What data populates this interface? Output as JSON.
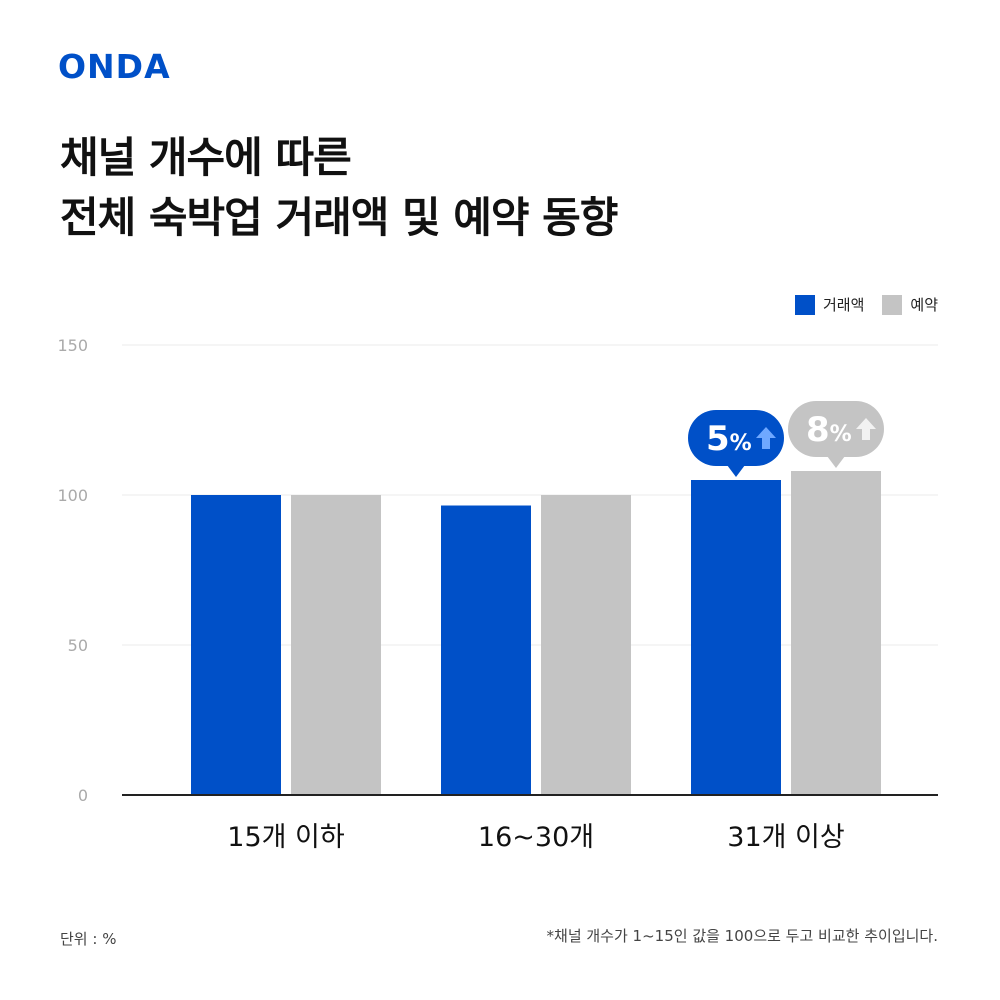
{
  "brand": {
    "logo_text": "ONDA",
    "logo_color": "#0050C8"
  },
  "title": {
    "line1": "채널 개수에 따른",
    "line2": "전체 숙박업 거래액 및 예약 동향"
  },
  "legend": [
    {
      "label": "거래액",
      "color": "#0050C8"
    },
    {
      "label": "예약",
      "color": "#C4C4C4"
    }
  ],
  "chart_data": {
    "type": "bar",
    "categories": [
      "15개 이하",
      "16~30개",
      "31개 이상"
    ],
    "series": [
      {
        "name": "거래액",
        "color": "#0050C8",
        "values": [
          100,
          96.5,
          105
        ]
      },
      {
        "name": "예약",
        "color": "#C4C4C4",
        "values": [
          100,
          100,
          108
        ]
      }
    ],
    "ylim": [
      0,
      150
    ],
    "yticks": [
      0,
      50,
      100,
      150
    ],
    "grid": true,
    "legend_position": "top-right",
    "annotations": [
      {
        "category": "31개 이상",
        "series": "거래액",
        "number": "5",
        "unit": "%",
        "direction": "up",
        "bubble_color": "#0050C8"
      },
      {
        "category": "31개 이상",
        "series": "예약",
        "number": "8",
        "unit": "%",
        "direction": "up",
        "bubble_color": "#C4C4C4"
      }
    ]
  },
  "footer": {
    "unit_label": "단위 : %",
    "note": "*채널 개수가 1~15인 값을 100으로 두고 비교한 추이입니다."
  }
}
